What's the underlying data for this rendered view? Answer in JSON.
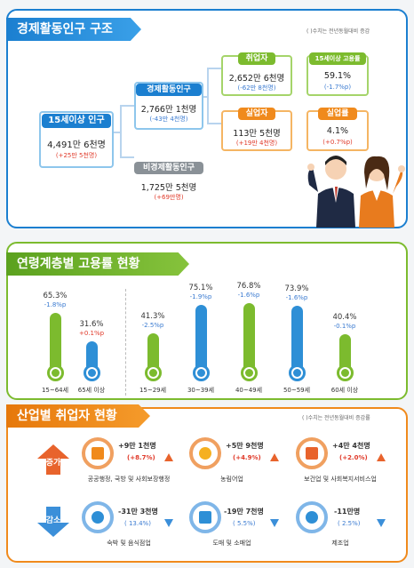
{
  "structure": {
    "title": "경제활동인구 구조",
    "note": "( )수치는 전년동월대비 증감",
    "pop15": {
      "label": "15세이상 인구",
      "value": "4,491만 6천명",
      "change": "(+25만 5천명)"
    },
    "active": {
      "label": "경제활동인구",
      "value": "2,766만 1천명",
      "change": "(-43만 4천명)"
    },
    "inactive": {
      "label": "비경제활동인구",
      "value": "1,725만 5천명",
      "change": "(+69만명)"
    },
    "employed": {
      "label": "취업자",
      "value": "2,652만 6천명",
      "change": "(-62만 8천명)"
    },
    "unemployed": {
      "label": "실업자",
      "value": "113만 5천명",
      "change": "(+19만 4천명)"
    },
    "emp_rate": {
      "label": "15세이상 고용률",
      "value": "59.1%",
      "change": "(-1.7%p)"
    },
    "unemp_rate": {
      "label": "실업률",
      "value": "4.1%",
      "change": "(+0.7%p)"
    }
  },
  "age": {
    "title": "연령계층별 고용률 현황",
    "bars": [
      {
        "label": "15~64세",
        "value": 65.3,
        "value_text": "65.3%",
        "change": "-1.8%p",
        "dir": "neg",
        "color": "#7cbb2e"
      },
      {
        "label": "65세 이상",
        "value": 31.6,
        "value_text": "31.6%",
        "change": "+0.1%p",
        "dir": "pos",
        "color": "#2e8fd6"
      },
      {
        "label": "15~29세",
        "value": 41.3,
        "value_text": "41.3%",
        "change": "-2.5%p",
        "dir": "neg",
        "color": "#7cbb2e"
      },
      {
        "label": "30~39세",
        "value": 75.1,
        "value_text": "75.1%",
        "change": "-1.9%p",
        "dir": "neg",
        "color": "#2e8fd6"
      },
      {
        "label": "40~49세",
        "value": 76.8,
        "value_text": "76.8%",
        "change": "-1.6%p",
        "dir": "neg",
        "color": "#7cbb2e"
      },
      {
        "label": "50~59세",
        "value": 73.9,
        "value_text": "73.9%",
        "change": "-1.6%p",
        "dir": "neg",
        "color": "#2e8fd6"
      },
      {
        "label": "60세 이상",
        "value": 40.4,
        "value_text": "40.4%",
        "change": "-0.1%p",
        "dir": "neg",
        "color": "#7cbb2e"
      }
    ]
  },
  "industry": {
    "title": "산업별 취업자 현황",
    "note": "( )수치는 전년동월대비 증감률",
    "increase_label": "증가",
    "decrease_label": "감소",
    "increase": [
      {
        "name": "공공행정, 국방 및 사회보장행정",
        "value": "+9만 1천명",
        "rate": "(+8.7%)",
        "icon": "document-icon"
      },
      {
        "name": "농림어업",
        "value": "+5만 9천명",
        "rate": "(+4.9%)",
        "icon": "wheat-icon"
      },
      {
        "name": "보건업 및 사회복지서비스업",
        "value": "+4만 4천명",
        "rate": "(+2.0%)",
        "icon": "medical-kit-icon"
      }
    ],
    "decrease": [
      {
        "name": "숙박 및 음식점업",
        "value": "-31만 3천명",
        "rate": "( 13.4%)",
        "icon": "dining-icon"
      },
      {
        "name": "도매 및 소매업",
        "value": "-19만 7천명",
        "rate": "( 5.5%)",
        "icon": "basket-icon"
      },
      {
        "name": "제조업",
        "value": "-11만명",
        "rate": "( 2.5%)",
        "icon": "gear-icon"
      }
    ]
  }
}
